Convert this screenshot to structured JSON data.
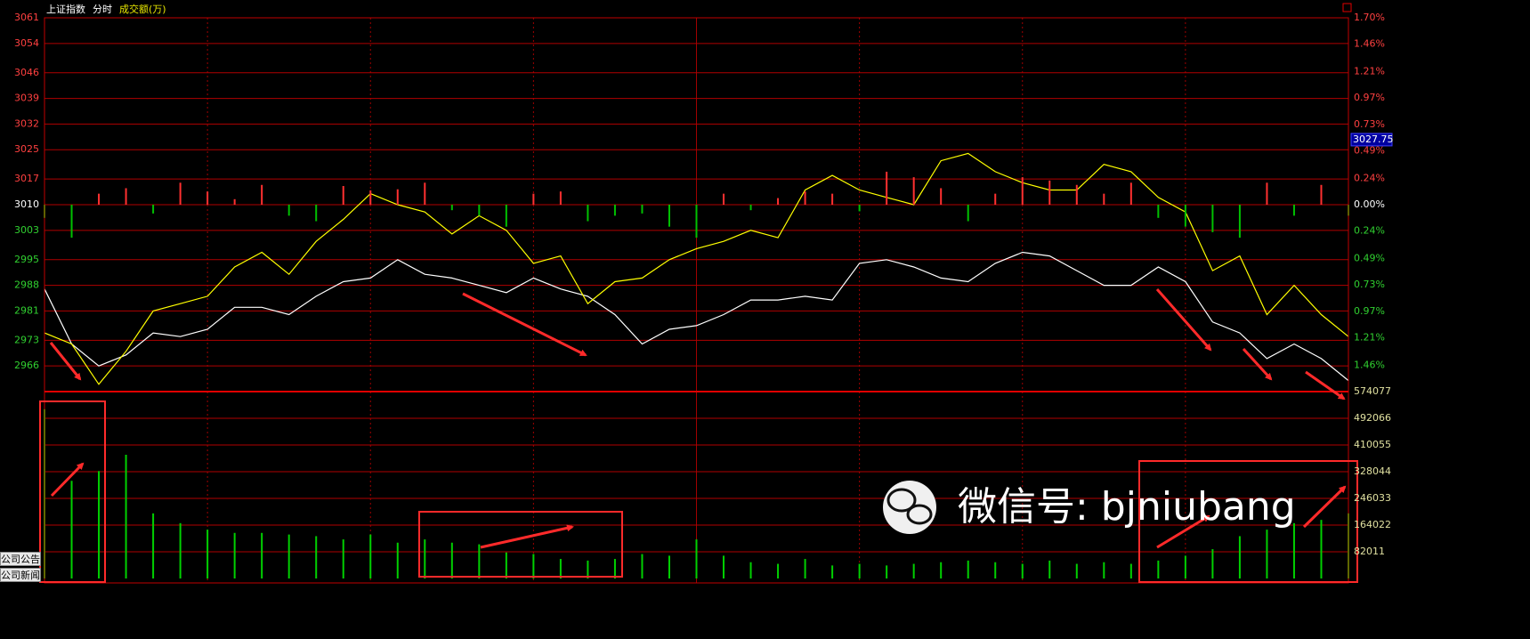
{
  "header": {
    "title": "上证指数",
    "mode": "分时",
    "indicator": "成交额(万)"
  },
  "side_tabs": [
    "公司公告",
    "公司新闻"
  ],
  "watermark": "微信号: bjniubang",
  "chart_data": [
    {
      "type": "line",
      "x": [
        0,
        5,
        10,
        15,
        20,
        25,
        30,
        35,
        40,
        45,
        50,
        55,
        60,
        65,
        70,
        75,
        80,
        85,
        90,
        95,
        100,
        105,
        110,
        115,
        120,
        125,
        130,
        135,
        140,
        145,
        150,
        155,
        160,
        165,
        170,
        175,
        180,
        185,
        190,
        195,
        200,
        205,
        210,
        215,
        220,
        225,
        230,
        235,
        240
      ],
      "xlim": [
        0,
        240
      ],
      "ylim": [
        2959,
        3061
      ],
      "yticks": [
        3061,
        3054,
        3046,
        3039,
        3032,
        3025,
        3017,
        3010,
        3003,
        2995,
        2988,
        2981,
        2973,
        2966
      ],
      "y2lim": [
        -1.7,
        1.7
      ],
      "y2ticks": [
        {
          "value": 1.7,
          "label": "1.70%"
        },
        {
          "value": 1.46,
          "label": "1.46%"
        },
        {
          "value": 1.21,
          "label": "1.21%"
        },
        {
          "value": 0.97,
          "label": "0.97%"
        },
        {
          "value": 0.73,
          "label": "0.73%"
        },
        {
          "value": 0.49,
          "label": "0.49%"
        },
        {
          "value": 0.24,
          "label": "0.24%"
        },
        {
          "value": 0,
          "label": "0.00%"
        },
        {
          "value": -0.24,
          "label": "0.24%"
        },
        {
          "value": -0.49,
          "label": "0.49%"
        },
        {
          "value": -0.73,
          "label": "0.73%"
        },
        {
          "value": -0.97,
          "label": "0.97%"
        },
        {
          "value": -1.21,
          "label": "1.21%"
        },
        {
          "value": -1.46,
          "label": "1.46%"
        }
      ],
      "grid": true,
      "cursor_value": 3027.75,
      "series": [
        {
          "color": "#ffffff",
          "values": [
            2987,
            2972,
            2966,
            2969,
            2975,
            2974,
            2976,
            2982,
            2982,
            2980,
            2985,
            2989,
            2990,
            2995,
            2991,
            2990,
            2988,
            2986,
            2990,
            2987,
            2985,
            2980,
            2972,
            2976,
            2977,
            2980,
            2984,
            2984,
            2985,
            2984,
            2994,
            2995,
            2993,
            2990,
            2989,
            2994,
            2997,
            2996,
            2992,
            2988,
            2988,
            2993,
            2989,
            2978,
            2975,
            2968,
            2972,
            2968,
            2962
          ]
        },
        {
          "color": "#ffff00",
          "values": [
            2975,
            2972,
            2961,
            2970,
            2981,
            2983,
            2985,
            2993,
            2997,
            2991,
            3000,
            3006,
            3013,
            3010,
            3008,
            3002,
            3007,
            3003,
            2994,
            2996,
            2983,
            2989,
            2990,
            2995,
            2998,
            3000,
            3003,
            3001,
            3014,
            3018,
            3014,
            3012,
            3010,
            3022,
            3024,
            3019,
            3016,
            3014,
            3014,
            3021,
            3019,
            3012,
            3008,
            2992,
            2996,
            2980,
            2988,
            2980,
            2974
          ]
        },
        {
          "type": "bar",
          "axis": "y2",
          "color": "#ff3030",
          "negative_color": "#00c000",
          "values": [
            -0.12,
            -0.3,
            0.1,
            0.15,
            -0.08,
            0.2,
            0.12,
            0.05,
            0.18,
            -0.1,
            -0.15,
            0.17,
            0.13,
            0.14,
            0.2,
            -0.05,
            -0.1,
            -0.2,
            0.1,
            0.12,
            -0.15,
            -0.1,
            -0.08,
            -0.2,
            -0.3,
            0.1,
            -0.05,
            0.06,
            0.12,
            0.1,
            -0.06,
            0.3,
            0.25,
            0.15,
            -0.15,
            0.1,
            0.25,
            0.22,
            0.18,
            0.1,
            0.2,
            -0.12,
            -0.2,
            -0.25,
            -0.3,
            0.2,
            -0.1,
            0.18,
            -0.1
          ]
        }
      ]
    },
    {
      "type": "bar",
      "x": [
        0,
        5,
        10,
        15,
        20,
        25,
        30,
        35,
        40,
        45,
        50,
        55,
        60,
        65,
        70,
        75,
        80,
        85,
        90,
        95,
        100,
        105,
        110,
        115,
        120,
        125,
        130,
        135,
        140,
        145,
        150,
        155,
        160,
        165,
        170,
        175,
        180,
        185,
        190,
        195,
        200,
        205,
        210,
        215,
        220,
        225,
        230,
        235,
        240
      ],
      "xlim": [
        0,
        240
      ],
      "ylim": [
        0,
        574077
      ],
      "yticks": [
        574077,
        492066,
        410055,
        328044,
        246033,
        164022,
        82011
      ],
      "grid": true,
      "color": "#00d000",
      "values": [
        520000,
        300000,
        330000,
        380000,
        200000,
        170000,
        150000,
        140000,
        140000,
        135000,
        130000,
        120000,
        135000,
        110000,
        120000,
        110000,
        105000,
        80000,
        75000,
        60000,
        55000,
        60000,
        75000,
        70000,
        120000,
        70000,
        50000,
        45000,
        60000,
        40000,
        45000,
        40000,
        45000,
        50000,
        55000,
        50000,
        45000,
        55000,
        45000,
        50000,
        45000,
        55000,
        70000,
        90000,
        130000,
        150000,
        170000,
        180000,
        200000
      ]
    }
  ]
}
